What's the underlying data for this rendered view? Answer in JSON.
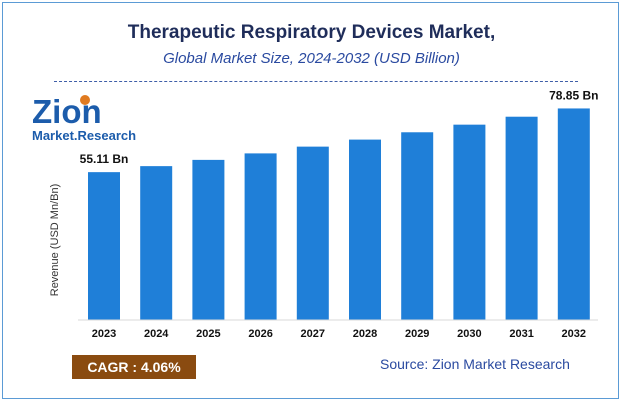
{
  "header": {
    "title": "Therapeutic Respiratory Devices Market,",
    "subtitle": "Global Market Size, 2024-2032 (USD Billion)"
  },
  "logo": {
    "line1": "Zion",
    "line2": "Market.Research"
  },
  "chart_data": {
    "type": "bar",
    "categories": [
      "2023",
      "2024",
      "2025",
      "2026",
      "2027",
      "2028",
      "2029",
      "2030",
      "2031",
      "2032"
    ],
    "values": [
      55.11,
      57.35,
      59.68,
      62.1,
      64.62,
      67.24,
      69.97,
      72.81,
      75.77,
      78.85
    ],
    "data_labels": {
      "first": "55.11 Bn",
      "last": "78.85 Bn"
    },
    "ylabel": "Revenue (USD Mn/Bn)",
    "ylim": [
      0,
      82
    ],
    "grid": false,
    "bar_color": "#1f7fd8"
  },
  "footer": {
    "cagr": "CAGR : 4.06%",
    "source": "Source: Zion Market Research"
  },
  "colors": {
    "title": "#1f2d5a",
    "subtitle": "#2a4aa0",
    "cagr_bg": "#8a4b10",
    "logo_blue": "#1c5cab",
    "logo_orange": "#e07a1f"
  }
}
